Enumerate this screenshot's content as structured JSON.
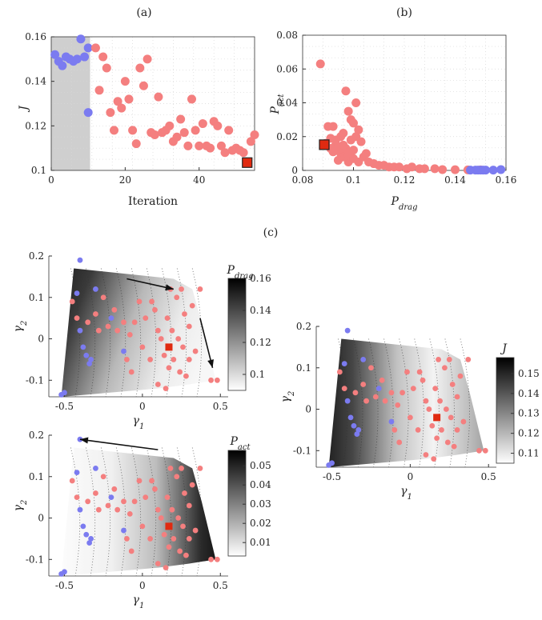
{
  "colors": {
    "initial": "#7b7bf0",
    "optimized": "#f47f7f",
    "best": "#e02a10",
    "gray_band": "#cfcfcf"
  },
  "panel_labels": [
    "(a)",
    "(b)",
    "(c)"
  ],
  "chart_data": [
    {
      "id": "a",
      "type": "scatter",
      "xlabel": "Iteration",
      "ylabel": "J",
      "xlim": [
        0,
        55
      ],
      "ylim": [
        0.1,
        0.16
      ],
      "xticks": [
        0,
        20,
        40
      ],
      "yticks": [
        0.1,
        0.12,
        0.14,
        0.16
      ],
      "xtick_labels": [
        "0",
        "20",
        "40"
      ],
      "ytick_labels": [
        "0.1",
        "0.12",
        "0.14",
        "0.16"
      ],
      "grid": true,
      "shaded_x": [
        0,
        10.5
      ],
      "series": [
        {
          "role": "initial",
          "x": [
            1,
            2,
            3,
            4,
            5,
            6,
            7,
            8,
            9,
            10
          ],
          "y": [
            0.152,
            0.149,
            0.147,
            0.151,
            0.15,
            0.149,
            0.15,
            0.159,
            0.151,
            0.155
          ]
        },
        {
          "role": "initial_outlier",
          "x": [
            10
          ],
          "y": [
            0.126
          ]
        },
        {
          "role": "optimized",
          "x": [
            12,
            13,
            14,
            15,
            16,
            17,
            18,
            19,
            20,
            21,
            22,
            23,
            24,
            25,
            26,
            27,
            28,
            29,
            30,
            31,
            32,
            33,
            34,
            35,
            36,
            37,
            38,
            39,
            40,
            41,
            42,
            43,
            44,
            45,
            46,
            47,
            48,
            49,
            50,
            51,
            52,
            54,
            55
          ],
          "y": [
            0.155,
            0.136,
            0.151,
            0.146,
            0.126,
            0.118,
            0.131,
            0.128,
            0.14,
            0.132,
            0.118,
            0.112,
            0.146,
            0.138,
            0.15,
            0.117,
            0.116,
            0.133,
            0.117,
            0.118,
            0.12,
            0.113,
            0.115,
            0.123,
            0.117,
            0.111,
            0.132,
            0.118,
            0.111,
            0.121,
            0.111,
            0.11,
            0.122,
            0.12,
            0.111,
            0.108,
            0.118,
            0.109,
            0.11,
            0.109,
            0.108,
            0.113,
            0.116
          ]
        },
        {
          "role": "best",
          "x": [
            53
          ],
          "y": [
            0.1035
          ]
        }
      ]
    },
    {
      "id": "b",
      "type": "scatter",
      "xlabel": "P_drag",
      "ylabel": "P_act",
      "xlim": [
        0.08,
        0.16
      ],
      "ylim": [
        0,
        0.08
      ],
      "xticks": [
        0.08,
        0.1,
        0.12,
        0.14,
        0.16
      ],
      "yticks": [
        0,
        0.02,
        0.04,
        0.06,
        0.08
      ],
      "xtick_labels": [
        "0.08",
        "0.1",
        "0.12",
        "0.14",
        "0.16"
      ],
      "ytick_labels": [
        "0",
        "0.02",
        "0.04",
        "0.06",
        "0.08"
      ],
      "grid": true,
      "series": [
        {
          "role": "optimized",
          "x": [
            0.087,
            0.089,
            0.09,
            0.091,
            0.092,
            0.093,
            0.094,
            0.095,
            0.096,
            0.097,
            0.098,
            0.099,
            0.1,
            0.101,
            0.102,
            0.103,
            0.105,
            0.095,
            0.097,
            0.099,
            0.1,
            0.101,
            0.098,
            0.096,
            0.094,
            0.093,
            0.092,
            0.091,
            0.094,
            0.096,
            0.098,
            0.1,
            0.102,
            0.104,
            0.106,
            0.108,
            0.11,
            0.112,
            0.114,
            0.116,
            0.118,
            0.121,
            0.123,
            0.126,
            0.128,
            0.132,
            0.135,
            0.14,
            0.145,
            0.15
          ],
          "y": [
            0.063,
            0.016,
            0.026,
            0.019,
            0.026,
            0.015,
            0.012,
            0.02,
            0.022,
            0.047,
            0.035,
            0.03,
            0.028,
            0.04,
            0.024,
            0.017,
            0.01,
            0.01,
            0.013,
            0.018,
            0.012,
            0.02,
            0.005,
            0.008,
            0.014,
            0.018,
            0.011,
            0.013,
            0.006,
            0.015,
            0.009,
            0.007,
            0.005,
            0.008,
            0.005,
            0.004,
            0.003,
            0.003,
            0.002,
            0.002,
            0.002,
            0.001,
            0.002,
            0.001,
            0.001,
            0.001,
            0.0005,
            0.0004,
            0.0003,
            0.0003
          ]
        },
        {
          "role": "initial",
          "x": [
            0.146,
            0.148,
            0.149,
            0.15,
            0.151,
            0.152,
            0.155,
            0.158
          ],
          "y": [
            0.0002,
            0.0002,
            0.0002,
            0.0002,
            0.0002,
            0.0002,
            0.0002,
            0.0005
          ]
        },
        {
          "role": "best",
          "x": [
            0.0885
          ],
          "y": [
            0.0152
          ]
        }
      ]
    },
    {
      "id": "c1",
      "type": "heatmap",
      "colorbar_label": "P_drag",
      "clim": [
        0.09,
        0.16
      ],
      "colorbar_ticks": [
        0.1,
        0.12,
        0.14,
        0.16
      ],
      "colorbar_tick_labels": [
        "0.1",
        "0.12",
        "0.14",
        "0.16"
      ],
      "xlabel": "γ1",
      "ylabel": "γ2",
      "xlim": [
        -0.6,
        0.55
      ],
      "ylim": [
        -0.14,
        0.2
      ],
      "xticks": [
        -0.5,
        0,
        0.5
      ],
      "yticks": [
        -0.1,
        0,
        0.1,
        0.2
      ],
      "xtick_labels": [
        "-0.5",
        "0",
        "0.5"
      ],
      "ytick_labels": [
        "-0.1",
        "0",
        "0.1",
        "0.2"
      ],
      "gradient": "high_left",
      "arrows": [
        [
          [
            -0.1,
            0.145
          ],
          [
            0.2,
            0.12
          ]
        ],
        [
          [
            0.37,
            0.05
          ],
          [
            0.45,
            -0.07
          ]
        ]
      ]
    },
    {
      "id": "c2",
      "type": "heatmap",
      "colorbar_label": "P_act",
      "clim": [
        0.003,
        0.058
      ],
      "colorbar_ticks": [
        0.01,
        0.02,
        0.03,
        0.04,
        0.05
      ],
      "colorbar_tick_labels": [
        "0.01",
        "0.02",
        "0.03",
        "0.04",
        "0.05"
      ],
      "xlabel": "γ1",
      "ylabel": "γ2",
      "xlim": [
        -0.6,
        0.55
      ],
      "ylim": [
        -0.14,
        0.2
      ],
      "xticks": [
        -0.5,
        0,
        0.5
      ],
      "yticks": [
        -0.1,
        0,
        0.1,
        0.2
      ],
      "xtick_labels": [
        "-0.5",
        "0",
        "0.5"
      ],
      "ytick_labels": [
        "-0.1",
        "0",
        "0.1",
        "0.2"
      ],
      "gradient": "high_right",
      "arrows": [
        [
          [
            0.1,
            0.165
          ],
          [
            -0.4,
            0.19
          ]
        ]
      ]
    },
    {
      "id": "c3",
      "type": "heatmap",
      "colorbar_label": "J",
      "clim": [
        0.105,
        0.158
      ],
      "colorbar_ticks": [
        0.11,
        0.12,
        0.13,
        0.14,
        0.15
      ],
      "colorbar_tick_labels": [
        "0.11",
        "0.12",
        "0.13",
        "0.14",
        "0.15"
      ],
      "xlabel": "γ1",
      "ylabel": "γ2",
      "xlim": [
        -0.6,
        0.55
      ],
      "ylim": [
        -0.14,
        0.2
      ],
      "xticks": [
        -0.5,
        0,
        0.5
      ],
      "yticks": [
        -0.1,
        0,
        0.1,
        0.2
      ],
      "xtick_labels": [
        "-0.5",
        "0",
        "0.5"
      ],
      "ytick_labels": [
        "-0.1",
        "0",
        "0.1",
        "0.2"
      ],
      "gradient": "valley",
      "arrows": []
    }
  ],
  "gamma_points": {
    "initial": [
      [
        -0.5,
        -0.13
      ],
      [
        -0.52,
        -0.135
      ],
      [
        -0.38,
        -0.02
      ],
      [
        -0.36,
        -0.04
      ],
      [
        -0.34,
        -0.06
      ],
      [
        -0.33,
        -0.05
      ],
      [
        -0.4,
        0.02
      ],
      [
        -0.42,
        0.11
      ],
      [
        -0.3,
        0.12
      ],
      [
        -0.2,
        0.05
      ],
      [
        -0.12,
        -0.03
      ],
      [
        -0.4,
        0.19
      ]
    ],
    "optimized": [
      [
        -0.42,
        0.05
      ],
      [
        -0.45,
        0.09
      ],
      [
        -0.35,
        0.04
      ],
      [
        -0.3,
        0.06
      ],
      [
        -0.28,
        0.02
      ],
      [
        -0.22,
        0.03
      ],
      [
        -0.18,
        0.07
      ],
      [
        -0.16,
        0.02
      ],
      [
        -0.12,
        0.04
      ],
      [
        -0.08,
        0.01
      ],
      [
        -0.05,
        0.04
      ],
      [
        -0.1,
        -0.05
      ],
      [
        -0.07,
        -0.08
      ],
      [
        0.0,
        -0.02
      ],
      [
        0.02,
        0.05
      ],
      [
        0.05,
        -0.05
      ],
      [
        0.08,
        0.07
      ],
      [
        0.1,
        0.02
      ],
      [
        0.12,
        0.0
      ],
      [
        0.14,
        -0.04
      ],
      [
        0.16,
        0.05
      ],
      [
        0.17,
        -0.07
      ],
      [
        0.19,
        0.02
      ],
      [
        0.2,
        -0.05
      ],
      [
        0.22,
        0.1
      ],
      [
        0.23,
        0.0
      ],
      [
        0.24,
        -0.08
      ],
      [
        0.25,
        0.12
      ],
      [
        0.26,
        -0.02
      ],
      [
        0.27,
        0.06
      ],
      [
        0.28,
        -0.09
      ],
      [
        0.3,
        0.03
      ],
      [
        0.3,
        -0.05
      ],
      [
        0.32,
        0.08
      ],
      [
        0.34,
        -0.03
      ],
      [
        0.37,
        0.12
      ],
      [
        0.44,
        -0.1
      ],
      [
        0.48,
        -0.1
      ],
      [
        0.15,
        -0.12
      ],
      [
        0.1,
        -0.11
      ],
      [
        0.06,
        0.09
      ],
      [
        0.18,
        0.12
      ],
      [
        -0.02,
        0.09
      ],
      [
        -0.25,
        0.1
      ]
    ],
    "best": [
      [
        0.17,
        -0.02
      ]
    ]
  }
}
